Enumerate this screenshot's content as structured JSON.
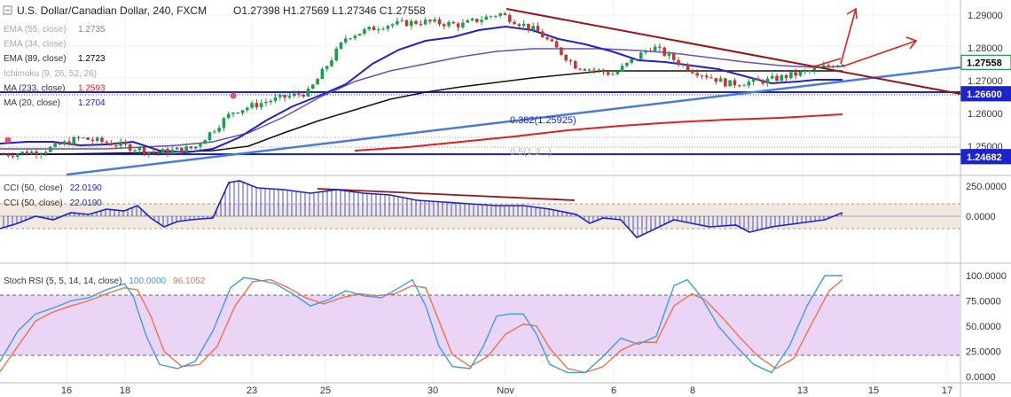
{
  "header": {
    "symbol": "U.S. Dollar/Canadian Dollar, 240, FXCM",
    "ohlc": "O1.27398  H1.27569  L1.27346  C1.27558"
  },
  "legend": [
    {
      "label": "EMA (55, close)",
      "value": "1.2735",
      "color": "#1e22cc",
      "faded": true
    },
    {
      "label": "EMA (34, close)",
      "value": "",
      "color": "#999999",
      "faded": true
    },
    {
      "label": "EMA (89, close)",
      "value": "1.2723",
      "color": "#000000",
      "faded": false
    },
    {
      "label": "Ichimoku (9, 26, 52, 26)",
      "value": "",
      "color": "#999999",
      "faded": true
    },
    {
      "label": "MA (233, close)",
      "value": "1.2593",
      "color": "#e02020",
      "faded": false
    },
    {
      "label": "MA (20, close)",
      "value": "1.2704",
      "color": "#1e22cc",
      "faded": false
    }
  ],
  "price_axis": {
    "ticks": [
      "1.29000",
      "1.28000",
      "1.27000",
      "1.26000",
      "1.25000"
    ],
    "badges": [
      {
        "text": "1.27558",
        "price": 1.27558,
        "bg": "#ffffff",
        "fg": "#000000",
        "border": "#1a9e4b"
      },
      {
        "text": "1.26600",
        "price": 1.266,
        "bg": "#1e22cc",
        "fg": "#ffffff",
        "border": "#1e22cc"
      },
      {
        "text": "1.24682",
        "price": 1.24682,
        "bg": "#1e22cc",
        "fg": "#ffffff",
        "border": "#1e22cc"
      }
    ]
  },
  "fib": [
    {
      "label": "0.382(1.25925)",
      "price": 1.25925
    },
    {
      "label": "0.5(1.2...)",
      "price": 1.25
    }
  ],
  "cci": {
    "legend": [
      {
        "label": "CCI (50, close)",
        "value": "22.0190"
      },
      {
        "label": "CCI (50, close)",
        "value": "22.0190"
      }
    ],
    "ticks": [
      "250.0000",
      "0.0000"
    ]
  },
  "stoch": {
    "legend": {
      "label": "Stoch RSI (5, 5, 14, 14, close)",
      "k": "100.0000",
      "d": "96.1052"
    },
    "ticks": [
      "100.0000",
      "75.0000",
      "50.0000",
      "25.0000",
      "0.0000"
    ]
  },
  "time_axis": [
    "16",
    "18",
    "23",
    "25",
    "30",
    "Nov",
    "6",
    "8",
    "13",
    "15",
    "17"
  ],
  "chart_data": {
    "type": "line",
    "title": "U.S. Dollar/Canadian Dollar, 240, FXCM",
    "price_range": [
      1.242,
      1.2925
    ],
    "close_series": {
      "name": "USD/CAD close",
      "x": [
        "15",
        "16",
        "17",
        "18",
        "19",
        "22",
        "23",
        "24",
        "25",
        "26",
        "29",
        "30",
        "31",
        "Nov 1",
        "2",
        "5",
        "6",
        "7",
        "8",
        "9",
        "12",
        "13",
        "14"
      ],
      "values": [
        1.2475,
        1.2485,
        1.2525,
        1.2505,
        1.248,
        1.2495,
        1.2605,
        1.264,
        1.2665,
        1.2835,
        1.287,
        1.288,
        1.287,
        1.2905,
        1.285,
        1.2745,
        1.272,
        1.2805,
        1.2735,
        1.269,
        1.27,
        1.2725,
        1.27558
      ]
    },
    "indicator_values": {
      "EMA 55": 1.2735,
      "EMA 89": 1.2723,
      "MA 233": 1.2593,
      "MA 20": 1.2704
    },
    "horizontal_levels": [
      1.266,
      1.24682
    ],
    "cci_last": 22.019,
    "stoch_rsi": {
      "k": 100.0,
      "d": 96.1052,
      "bands": [
        80,
        20
      ]
    }
  }
}
